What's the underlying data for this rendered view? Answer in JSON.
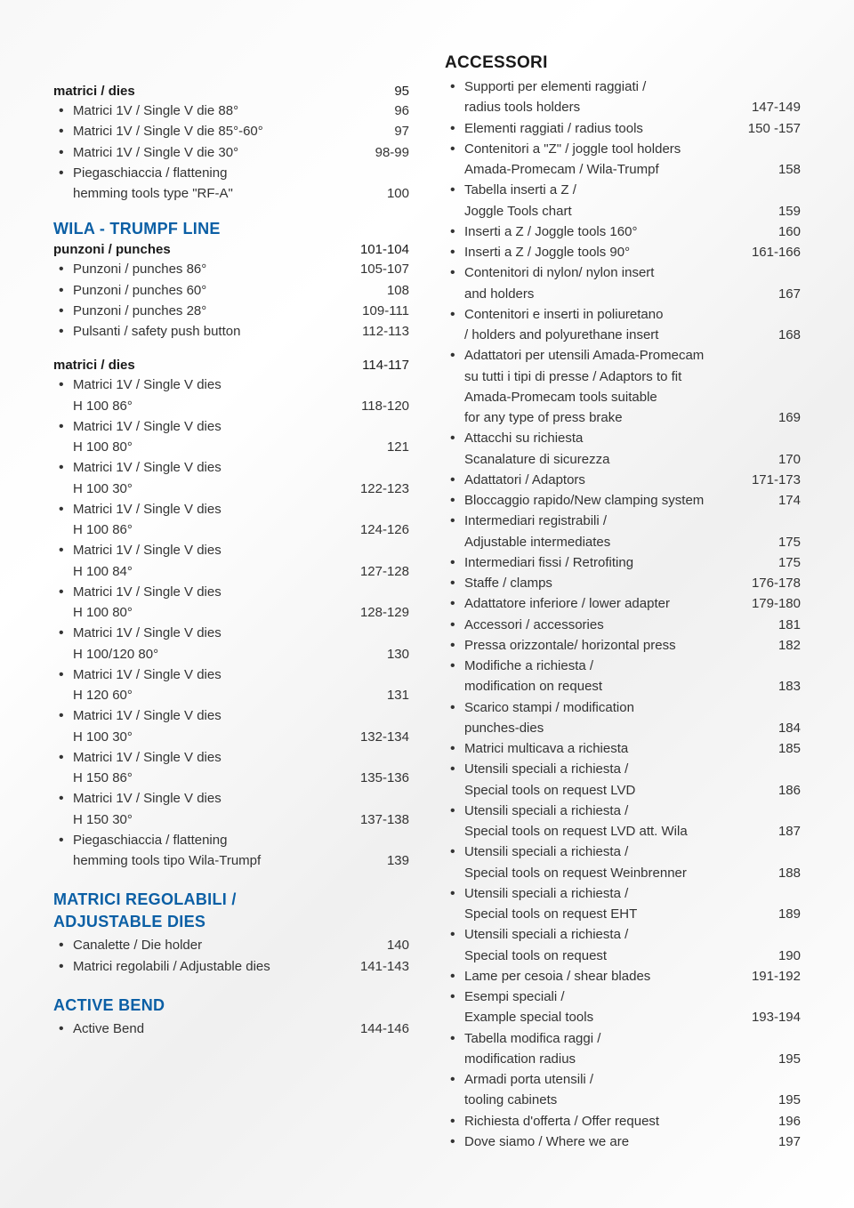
{
  "colors": {
    "heading_blue": "#0b5fa5",
    "heading_black": "#1a1a1a",
    "text": "#333333",
    "background_from": "#f8f8f8",
    "background_to": "#ffffff"
  },
  "typography": {
    "heading_fontsize": 18,
    "subhead_fontsize": 15,
    "body_fontsize": 15,
    "heading_weight": 800,
    "subhead_weight": 700
  },
  "left": {
    "g1": {
      "subhead": {
        "label": "matrici / dies",
        "page": "95"
      },
      "items": [
        {
          "label": "Matrici 1V / Single V die 88°",
          "page": "96"
        },
        {
          "label": "Matrici 1V / Single V die 85°-60°",
          "page": "97"
        },
        {
          "label": "Matrici 1V / Single V die 30°",
          "page": "98-99"
        },
        {
          "label": "Piegaschiaccia / flattening",
          "sub": "hemming tools type \"RF-A\"",
          "page": "100"
        }
      ]
    },
    "g2": {
      "title": "WILA - TRUMPF LINE",
      "subhead": {
        "label": "punzoni / punches",
        "page": "101-104"
      },
      "items": [
        {
          "label": "Punzoni / punches 86°",
          "page": "105-107"
        },
        {
          "label": "Punzoni / punches 60°",
          "page": "108"
        },
        {
          "label": "Punzoni / punches 28°",
          "page": "109-111"
        },
        {
          "label": "Pulsanti / safety push button",
          "page": "112-113"
        }
      ]
    },
    "g3": {
      "subhead": {
        "label": "matrici / dies",
        "page": "114-117"
      },
      "items": [
        {
          "label": "Matrici 1V / Single V dies",
          "sub": "H 100 86°",
          "page": "118-120"
        },
        {
          "label": "Matrici 1V / Single V dies",
          "sub": "H 100 80°",
          "page": "121"
        },
        {
          "label": "Matrici 1V / Single V dies",
          "sub": "H 100 30°",
          "page": "122-123"
        },
        {
          "label": "Matrici 1V / Single V dies",
          "sub": "H 100 86°",
          "page": "124-126"
        },
        {
          "label": "Matrici 1V / Single V dies",
          "sub": "H 100 84°",
          "page": "127-128"
        },
        {
          "label": "Matrici 1V / Single V dies",
          "sub": "H 100 80°",
          "page": "128-129"
        },
        {
          "label": "Matrici 1V / Single V dies",
          "sub": "H 100/120 80°",
          "page": "130"
        },
        {
          "label": "Matrici 1V / Single V dies",
          "sub": "H 120 60°",
          "page": "131"
        },
        {
          "label": "Matrici 1V / Single V dies",
          "sub": "H 100 30°",
          "page": "132-134"
        },
        {
          "label": "Matrici 1V / Single V dies",
          "sub": "H 150 86°",
          "page": "135-136"
        },
        {
          "label": "Matrici 1V / Single V dies",
          "sub": "H 150 30°",
          "page": "137-138"
        },
        {
          "label": "Piegaschiaccia / flattening",
          "sub": "hemming tools tipo Wila-Trumpf",
          "page": "139"
        }
      ]
    },
    "g4": {
      "title_l1": "MATRICI REGOLABILI /",
      "title_l2": "ADJUSTABLE DIES",
      "items": [
        {
          "label": "Canalette / Die holder",
          "page": "140"
        },
        {
          "label": "Matrici regolabili / Adjustable dies",
          "page": "141-143"
        }
      ]
    },
    "g5": {
      "title": "ACTIVE BEND",
      "items": [
        {
          "label": "Active Bend",
          "page": "144-146"
        }
      ]
    }
  },
  "right": {
    "title": "ACCESSORI",
    "items": [
      {
        "label": "Supporti per elementi raggiati /",
        "sub": "radius tools holders",
        "page": "147-149"
      },
      {
        "label": "Elementi raggiati / radius tools",
        "page": "150 -157"
      },
      {
        "label": "Contenitori a \"Z\" / joggle tool holders",
        "sub": "Amada-Promecam / Wila-Trumpf",
        "page": "158"
      },
      {
        "label": "Tabella inserti a Z /",
        "sub": "Joggle Tools chart",
        "page": "159"
      },
      {
        "label": "Inserti a Z / Joggle tools 160°",
        "page": "160"
      },
      {
        "label": "Inserti a Z / Joggle tools 90°",
        "page": "161-166"
      },
      {
        "label": "Contenitori di nylon/ nylon insert",
        "sub": "and holders",
        "page": "167"
      },
      {
        "label": "Contenitori e inserti in poliuretano",
        "sub": "/ holders and polyurethane insert",
        "page": "168"
      },
      {
        "label": "Adattatori per utensili  Amada-Promecam",
        "sub": "su tutti i tipi di presse / Adaptors to fit",
        "sub2": "Amada-Promecam tools suitable",
        "sub3": "for any type of press brake",
        "page": "169"
      },
      {
        "label": "Attacchi su richiesta",
        "sub": "Scanalature di sicurezza",
        "page": "170"
      },
      {
        "label": "Adattatori / Adaptors",
        "page": "171-173"
      },
      {
        "label": "Bloccaggio rapido/New clamping system",
        "page": "174"
      },
      {
        "label": "Intermediari registrabili /",
        "sub": "Adjustable intermediates",
        "page": "175"
      },
      {
        "label": "Intermediari fissi / Retrofiting",
        "page": "175"
      },
      {
        "label": "Staffe / clamps",
        "page": "176-178"
      },
      {
        "label": "Adattatore inferiore / lower adapter",
        "page": "179-180"
      },
      {
        "label": "Accessori / accessories",
        "page": "181"
      },
      {
        "label": "Pressa orizzontale/  horizontal press",
        "page": "182"
      },
      {
        "label": "Modifiche a richiesta /",
        "sub": "modification on request",
        "page": "183"
      },
      {
        "label": "Scarico stampi / modification",
        "sub": "punches-dies",
        "page": "184"
      },
      {
        "label": "Matrici multicava a richiesta",
        "page": "185"
      },
      {
        "label": "Utensili speciali a richiesta /",
        "sub": "Special tools on request LVD",
        "page": "186"
      },
      {
        "label": "Utensili speciali a richiesta /",
        "sub": "Special tools on request LVD att. Wila",
        "page": "187"
      },
      {
        "label": "Utensili speciali a richiesta /",
        "sub": "Special tools on request Weinbrenner",
        "page": "188"
      },
      {
        "label": "Utensili speciali a richiesta /",
        "sub": "Special tools on request EHT",
        "page": "189"
      },
      {
        "label": "Utensili speciali a richiesta /",
        "sub": "Special tools on request",
        "page": "190"
      },
      {
        "label": "Lame per cesoia / shear blades",
        "page": "191-192"
      },
      {
        "label": "Esempi speciali /",
        "sub": "Example special tools",
        "page": "193-194"
      },
      {
        "label": "Tabella modifica raggi /",
        "sub": "modification radius",
        "page": "195"
      },
      {
        "label": "Armadi porta utensili /",
        "sub": "tooling cabinets",
        "page": "195"
      },
      {
        "label": "Richiesta d'offerta / Offer request",
        "page": "196"
      },
      {
        "label": "Dove siamo / Where we are",
        "page": "197"
      }
    ]
  }
}
